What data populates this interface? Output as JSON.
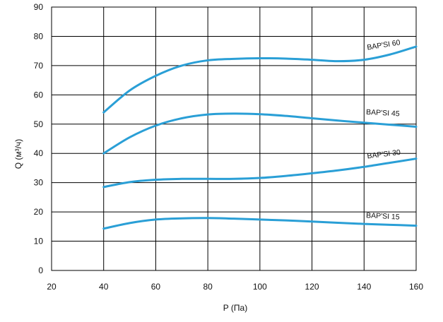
{
  "chart_data": {
    "type": "line",
    "xlabel": "P (Па)",
    "ylabel": "Q (м³/ч)",
    "xlim": [
      20,
      160
    ],
    "ylim": [
      0,
      90
    ],
    "xticks": [
      20,
      40,
      60,
      80,
      100,
      120,
      140,
      160
    ],
    "yticks": [
      0,
      10,
      20,
      30,
      40,
      50,
      60,
      70,
      80,
      90
    ],
    "grid": true,
    "line_color": "#2a9fd6",
    "series": [
      {
        "name": "BAP'SI 60",
        "x": [
          40,
          50,
          60,
          70,
          80,
          90,
          100,
          110,
          120,
          130,
          140,
          150,
          160
        ],
        "values": [
          54,
          61.5,
          66.5,
          70,
          71.8,
          72.3,
          72.5,
          72.4,
          72,
          71.5,
          72,
          73.8,
          76.5
        ]
      },
      {
        "name": "BAP'SI 45",
        "x": [
          40,
          50,
          60,
          70,
          80,
          90,
          100,
          110,
          120,
          130,
          140,
          150,
          160
        ],
        "values": [
          40,
          45.5,
          49.5,
          52,
          53.3,
          53.6,
          53.4,
          52.8,
          52,
          51.2,
          50.5,
          49.8,
          49.1
        ]
      },
      {
        "name": "BAP'SI 30",
        "x": [
          40,
          50,
          60,
          70,
          80,
          90,
          100,
          110,
          120,
          130,
          140,
          150,
          160
        ],
        "values": [
          28.5,
          30.2,
          31,
          31.3,
          31.3,
          31.3,
          31.6,
          32.3,
          33.2,
          34.2,
          35.4,
          36.8,
          38.2
        ]
      },
      {
        "name": "BAP'SI 15",
        "x": [
          40,
          50,
          60,
          70,
          80,
          90,
          100,
          110,
          120,
          130,
          140,
          150,
          160
        ],
        "values": [
          14.3,
          16.2,
          17.4,
          17.8,
          17.9,
          17.7,
          17.4,
          17.1,
          16.7,
          16.3,
          15.9,
          15.6,
          15.3
        ]
      }
    ]
  }
}
